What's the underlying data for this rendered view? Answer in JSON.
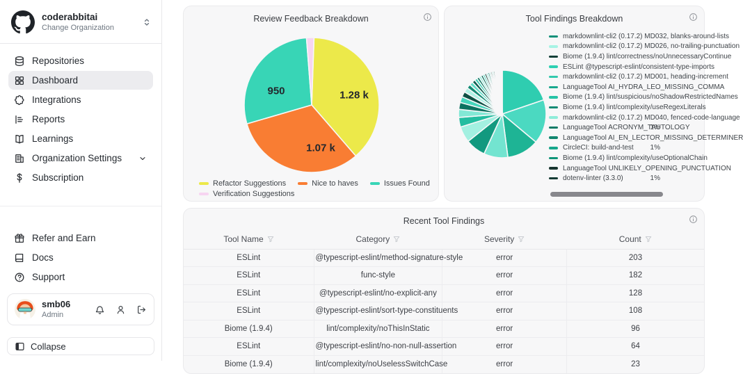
{
  "sidebar": {
    "org": {
      "name": "coderabbitai",
      "subtitle": "Change Organization"
    },
    "nav": [
      {
        "label": "Repositories",
        "icon": "database",
        "active": false
      },
      {
        "label": "Dashboard",
        "icon": "grid",
        "active": true
      },
      {
        "label": "Integrations",
        "icon": "puzzle",
        "active": false
      },
      {
        "label": "Reports",
        "icon": "report",
        "active": false
      },
      {
        "label": "Learnings",
        "icon": "book-open",
        "active": false
      },
      {
        "label": "Organization Settings",
        "icon": "building",
        "active": false,
        "chevron": true
      },
      {
        "label": "Subscription",
        "icon": "dollar",
        "active": false
      }
    ],
    "secondary_nav": [
      {
        "label": "Refer and Earn",
        "icon": "gift"
      },
      {
        "label": "Docs",
        "icon": "book"
      },
      {
        "label": "Support",
        "icon": "help-circle"
      }
    ],
    "user": {
      "name": "smb06",
      "role": "Admin"
    },
    "collapse_label": "Collapse"
  },
  "chart_data": [
    {
      "type": "pie",
      "title": "Review Feedback Breakdown",
      "legend_position": "bottom",
      "start_angle": 2,
      "series": [
        {
          "name": "Refactor Suggestions",
          "value": 1280,
          "label": "1.28 k",
          "color": "#ece94a"
        },
        {
          "name": "Nice to haves",
          "value": 1070,
          "label": "1.07 k",
          "color": "#f97d33"
        },
        {
          "name": "Issues Found",
          "value": 950,
          "label": "950",
          "color": "#38d5b6"
        },
        {
          "name": "Verification Suggestions",
          "value": 60,
          "label": "",
          "color": "#f7d5f1"
        }
      ]
    },
    {
      "type": "pie",
      "title": "Tool Findings Breakdown",
      "legend_position": "right",
      "series": [
        {
          "name": "markdownlint-cli2 (0.17.2) MD032, blanks-around-lists",
          "pct": "",
          "color": "#0d8f79"
        },
        {
          "name": "markdownlint-cli2 (0.17.2) MD026, no-trailing-punctuation",
          "pct": "",
          "color": "#a7f3e5"
        },
        {
          "name": "Biome (1.9.4) lint/correctness/noUnnecessaryContinue",
          "pct": "",
          "color": "#123f38"
        },
        {
          "name": "ESLint @typescript-eslint/consistent-type-imports",
          "pct": "",
          "color": "#2dd0b2"
        },
        {
          "name": "markdownlint-cli2 (0.17.2) MD001, heading-increment",
          "pct": "",
          "color": "#31c9ad"
        },
        {
          "name": "LanguageTool AI_HYDRA_LEO_MISSING_COMMA",
          "pct": "",
          "color": "#18a88e"
        },
        {
          "name": "Biome (1.9.4) lint/suspicious/noShadowRestrictedNames",
          "pct": "",
          "color": "#25c3a6"
        },
        {
          "name": "Biome (1.9.4) lint/complexity/useRegexLiterals",
          "pct": "",
          "color": "#0f8a74"
        },
        {
          "name": "markdownlint-cli2 (0.17.2) MD040, fenced-code-language",
          "pct": "",
          "color": "#8eecd9"
        },
        {
          "name": "LanguageTool ACRONYM_TAUTOLOGY",
          "pct": "1%",
          "color": "#0c7a66"
        },
        {
          "name": "LanguageTool AI_EN_LECTOR_MISSING_DETERMINER",
          "pct": "",
          "color": "#11866f"
        },
        {
          "name": "CircleCI: build-and-test",
          "pct": "1%",
          "color": "#16a68b"
        },
        {
          "name": "Biome (1.9.4) lint/complexity/useOptionalChain",
          "pct": "",
          "color": "#0e9478"
        },
        {
          "name": "LanguageTool UNLIKELY_OPENING_PUNCTUATION",
          "pct": "",
          "color": "#16342e"
        },
        {
          "name": "dotenv-linter (3.3.0)",
          "pct": "1%",
          "color": "#143b34"
        }
      ],
      "slices": [
        {
          "v": 20,
          "c": "#2fcdb0"
        },
        {
          "v": 16.5,
          "c": "#4bd9c1"
        },
        {
          "v": 12,
          "c": "#1eb495"
        },
        {
          "v": 9,
          "c": "#73e4d0"
        },
        {
          "v": 7.5,
          "c": "#12997f"
        },
        {
          "v": 6,
          "c": "#a3f0e1"
        },
        {
          "v": 3.6,
          "c": "#23bda0"
        },
        {
          "v": 3,
          "c": "#82e8d5"
        },
        {
          "v": 2.6,
          "c": "#0d7260"
        },
        {
          "v": 2.2,
          "c": "#46d6bc"
        },
        {
          "v": 2,
          "c": "#0f5145"
        },
        {
          "v": 1.8,
          "c": "#b0f2e5"
        },
        {
          "v": 1.5,
          "c": "#138b74"
        },
        {
          "v": 1.3,
          "c": "#61dfc8"
        },
        {
          "v": 1.2,
          "c": "#0d5e4f"
        },
        {
          "v": 1.0,
          "c": "#36cfb3"
        },
        {
          "v": 0.9,
          "c": "#117a65"
        },
        {
          "v": 0.8,
          "c": "#8cebd8"
        },
        {
          "v": 0.8,
          "c": "#0e6b59"
        },
        {
          "v": 0.7,
          "c": "#3fd3b7"
        },
        {
          "v": 0.7,
          "c": "#123f36"
        },
        {
          "v": 0.6,
          "c": "#70e3cf"
        },
        {
          "v": 0.6,
          "c": "#0f8a74"
        },
        {
          "v": 0.5,
          "c": "#2ec7aa"
        },
        {
          "v": 0.5,
          "c": "#0c302a"
        },
        {
          "v": 0.5,
          "c": "#54dcc3"
        },
        {
          "v": 0.5,
          "c": "#165f50"
        },
        {
          "v": 0.4,
          "c": "#37d0b4"
        },
        {
          "v": 0.4,
          "c": "#0f4f43"
        },
        {
          "v": 0.4,
          "c": "#22b598"
        },
        {
          "v": 0.4,
          "c": "#0a3d34"
        },
        {
          "v": 0.35,
          "c": "#46d6bc"
        },
        {
          "v": 0.3,
          "c": "#123b33"
        },
        {
          "v": 0.3,
          "c": "#2fcdb0"
        },
        {
          "v": 0.3,
          "c": "#0d5e4f"
        }
      ]
    },
    {
      "type": "table",
      "title": "Recent Tool Findings",
      "columns": [
        "Tool Name",
        "Category",
        "Severity",
        "Count"
      ],
      "rows": [
        [
          "ESLint",
          "@typescript-eslint/method-signature-style",
          "error",
          "203"
        ],
        [
          "ESLint",
          "func-style",
          "error",
          "182"
        ],
        [
          "ESLint",
          "@typescript-eslint/no-explicit-any",
          "error",
          "128"
        ],
        [
          "ESLint",
          "@typescript-eslint/sort-type-constituents",
          "error",
          "108"
        ],
        [
          "Biome (1.9.4)",
          "lint/complexity/noThisInStatic",
          "error",
          "96"
        ],
        [
          "ESLint",
          "@typescript-eslint/no-non-null-assertion",
          "error",
          "64"
        ],
        [
          "Biome (1.9.4)",
          "lint/complexity/noUselessSwitchCase",
          "error",
          "23"
        ]
      ]
    }
  ]
}
